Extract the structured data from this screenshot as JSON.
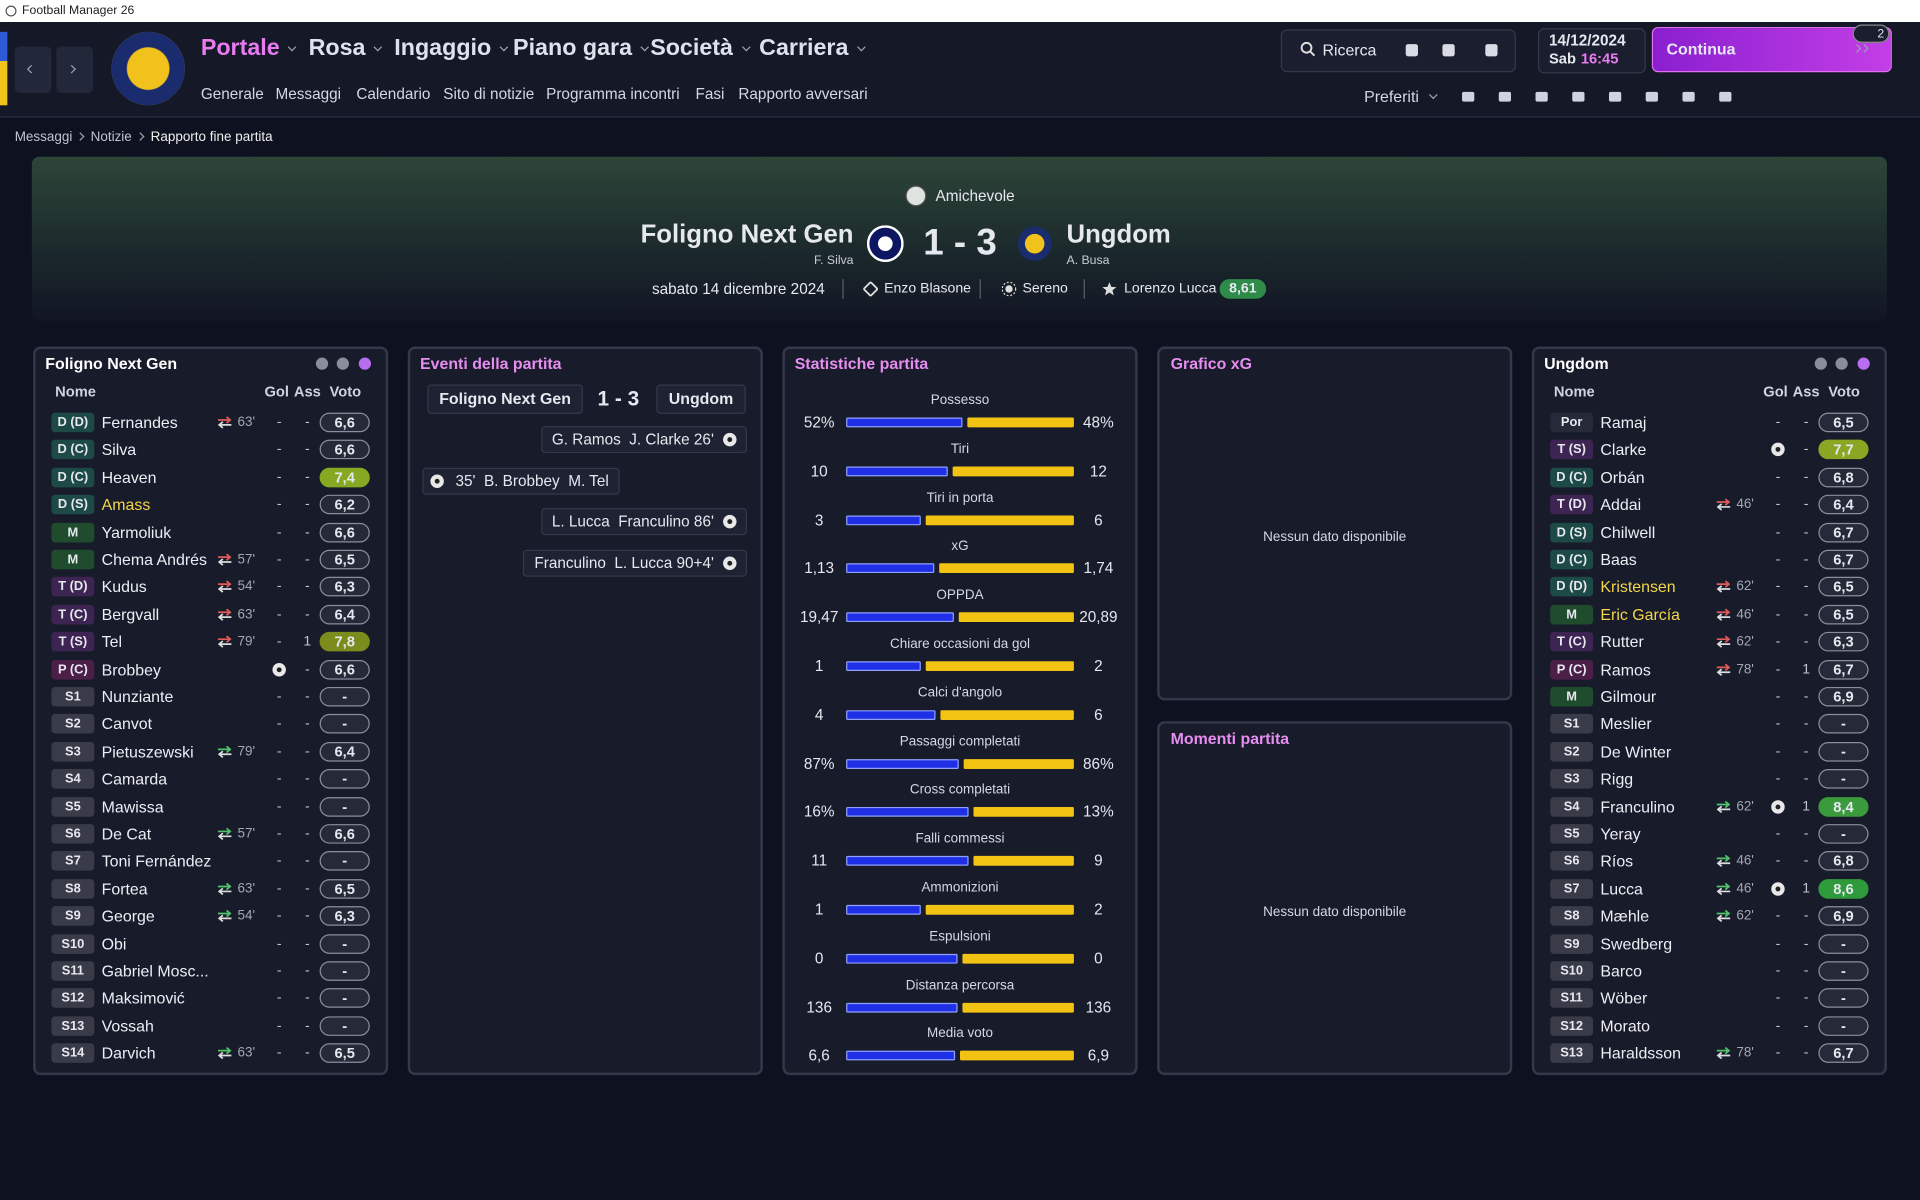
{
  "window": {
    "title": "Football Manager 26"
  },
  "nav": {
    "menus": [
      "Portale",
      "Rosa",
      "Ingaggio",
      "Piano gara",
      "Società",
      "Carriera"
    ],
    "submenus": [
      "Generale",
      "Messaggi",
      "Calendario",
      "Sito di notizie",
      "Programma incontri",
      "Fasi",
      "Rapporto avversari"
    ],
    "search": "Ricerca",
    "date": "14/12/2024",
    "day": "Sab",
    "time": "16:45",
    "continue": "Continua",
    "badge": "2",
    "favorites": "Preferiti"
  },
  "breadcrumb": [
    "Messaggi",
    "Notizie",
    "Rapporto fine partita"
  ],
  "match": {
    "competition": "Amichevole",
    "home": "Foligno Next Gen",
    "home_manager": "F. Silva",
    "score": "1 - 3",
    "away": "Ungdom",
    "away_manager": "A. Busa",
    "date": "sabato 14 dicembre 2024",
    "referee": "Enzo Blasone",
    "weather": "Sereno",
    "player_of_match": "Lorenzo Lucca",
    "pom_rating": "8,61"
  },
  "lineups": [
    {
      "team": "Foligno Next Gen",
      "columns": [
        "Nome",
        "Gol",
        "Ass",
        "Voto"
      ],
      "players": [
        {
          "pos": "D (D)",
          "name": "Fernandes",
          "off": "63'",
          "gol": "-",
          "ass": "-",
          "voto": "6,6"
        },
        {
          "pos": "D (C)",
          "name": "Silva",
          "gol": "-",
          "ass": "-",
          "voto": "6,6"
        },
        {
          "pos": "D (C)",
          "name": "Heaven",
          "gol": "-",
          "ass": "-",
          "voto": "7,4",
          "voto_color": "#86a823"
        },
        {
          "pos": "D (S)",
          "name": "Amass",
          "name_color": "#f2d64b",
          "gol": "-",
          "ass": "-",
          "voto": "6,2"
        },
        {
          "pos": "M",
          "name": "Yarmoliuk",
          "gol": "-",
          "ass": "-",
          "voto": "6,6"
        },
        {
          "pos": "M",
          "name": "Chema Andrés",
          "off": "57'",
          "gol": "-",
          "ass": "-",
          "voto": "6,5"
        },
        {
          "pos": "T (D)",
          "name": "Kudus",
          "off": "54'",
          "gol": "-",
          "ass": "-",
          "voto": "6,3"
        },
        {
          "pos": "T (C)",
          "name": "Bergvall",
          "off": "63'",
          "gol": "-",
          "ass": "-",
          "voto": "6,4"
        },
        {
          "pos": "T (S)",
          "name": "Tel",
          "off": "79'",
          "gol": "-",
          "ass": "1",
          "voto": "7,8",
          "voto_color": "#7b8c1c"
        },
        {
          "pos": "P (C)",
          "name": "Brobbey",
          "goal_icon": true,
          "ass": "-",
          "voto": "6,6"
        },
        {
          "pos": "S1",
          "name": "Nunziante",
          "gol": "-",
          "ass": "-",
          "voto": "-"
        },
        {
          "pos": "S2",
          "name": "Canvot",
          "gol": "-",
          "ass": "-",
          "voto": "-"
        },
        {
          "pos": "S3",
          "name": "Pietuszewski",
          "on": "79'",
          "gol": "-",
          "ass": "-",
          "voto": "6,4"
        },
        {
          "pos": "S4",
          "name": "Camarda",
          "gol": "-",
          "ass": "-",
          "voto": "-"
        },
        {
          "pos": "S5",
          "name": "Mawissa",
          "gol": "-",
          "ass": "-",
          "voto": "-"
        },
        {
          "pos": "S6",
          "name": "De Cat",
          "on": "57'",
          "gol": "-",
          "ass": "-",
          "voto": "6,6"
        },
        {
          "pos": "S7",
          "name": "Toni Fernández",
          "gol": "-",
          "ass": "-",
          "voto": "-"
        },
        {
          "pos": "S8",
          "name": "Fortea",
          "on": "63'",
          "gol": "-",
          "ass": "-",
          "voto": "6,5"
        },
        {
          "pos": "S9",
          "name": "George",
          "on": "54'",
          "gol": "-",
          "ass": "-",
          "voto": "6,3"
        },
        {
          "pos": "S10",
          "name": "Obi",
          "gol": "-",
          "ass": "-",
          "voto": "-"
        },
        {
          "pos": "S11",
          "name": "Gabriel Mosc...",
          "gol": "-",
          "ass": "-",
          "voto": "-"
        },
        {
          "pos": "S12",
          "name": "Maksimović",
          "gol": "-",
          "ass": "-",
          "voto": "-"
        },
        {
          "pos": "S13",
          "name": "Vossah",
          "gol": "-",
          "ass": "-",
          "voto": "-"
        },
        {
          "pos": "S14",
          "name": "Darvich",
          "on": "63'",
          "gol": "-",
          "ass": "-",
          "voto": "6,5"
        }
      ]
    },
    {
      "team": "Ungdom",
      "columns": [
        "Nome",
        "Gol",
        "Ass",
        "Voto"
      ],
      "players": [
        {
          "pos": "Por",
          "name": "Ramaj",
          "gol": "-",
          "ass": "-",
          "voto": "6,5"
        },
        {
          "pos": "T (S)",
          "name": "Clarke",
          "goal_icon": true,
          "ass": "-",
          "voto": "7,7",
          "voto_color": "#8aa623"
        },
        {
          "pos": "D (C)",
          "name": "Orbán",
          "gol": "-",
          "ass": "-",
          "voto": "6,8"
        },
        {
          "pos": "T (D)",
          "name": "Addai",
          "off": "46'",
          "gol": "-",
          "ass": "-",
          "voto": "6,4"
        },
        {
          "pos": "D (S)",
          "name": "Chilwell",
          "gol": "-",
          "ass": "-",
          "voto": "6,7"
        },
        {
          "pos": "D (C)",
          "name": "Baas",
          "gol": "-",
          "ass": "-",
          "voto": "6,7"
        },
        {
          "pos": "D (D)",
          "name": "Kristensen",
          "name_color": "#f2d64b",
          "off": "62'",
          "gol": "-",
          "ass": "-",
          "voto": "6,5"
        },
        {
          "pos": "M",
          "name": "Eric García",
          "name_color": "#f2d64b",
          "off": "46'",
          "gol": "-",
          "ass": "-",
          "voto": "6,5"
        },
        {
          "pos": "T (C)",
          "name": "Rutter",
          "off": "62'",
          "gol": "-",
          "ass": "-",
          "voto": "6,3"
        },
        {
          "pos": "P (C)",
          "name": "Ramos",
          "off": "78'",
          "gol": "-",
          "ass": "1",
          "voto": "6,7"
        },
        {
          "pos": "M",
          "name": "Gilmour",
          "gol": "-",
          "ass": "-",
          "voto": "6,9"
        },
        {
          "pos": "S1",
          "name": "Meslier",
          "gol": "-",
          "ass": "-",
          "voto": "-"
        },
        {
          "pos": "S2",
          "name": "De Winter",
          "gol": "-",
          "ass": "-",
          "voto": "-"
        },
        {
          "pos": "S3",
          "name": "Rigg",
          "gol": "-",
          "ass": "-",
          "voto": "-"
        },
        {
          "pos": "S4",
          "name": "Franculino",
          "on": "62'",
          "goal_icon": true,
          "ass": "1",
          "voto": "8,4",
          "voto_color": "#3a9a3c"
        },
        {
          "pos": "S5",
          "name": "Yeray",
          "gol": "-",
          "ass": "-",
          "voto": "-"
        },
        {
          "pos": "S6",
          "name": "Ríos",
          "on": "46'",
          "gol": "-",
          "ass": "-",
          "voto": "6,8"
        },
        {
          "pos": "S7",
          "name": "Lucca",
          "on": "46'",
          "goal_icon": true,
          "ass": "1",
          "voto": "8,6",
          "voto_color": "#2f9a3b"
        },
        {
          "pos": "S8",
          "name": "Mæhle",
          "on": "62'",
          "gol": "-",
          "ass": "-",
          "voto": "6,9"
        },
        {
          "pos": "S9",
          "name": "Swedberg",
          "gol": "-",
          "ass": "-",
          "voto": "-"
        },
        {
          "pos": "S10",
          "name": "Barco",
          "gol": "-",
          "ass": "-",
          "voto": "-"
        },
        {
          "pos": "S11",
          "name": "Wöber",
          "gol": "-",
          "ass": "-",
          "voto": "-"
        },
        {
          "pos": "S12",
          "name": "Morato",
          "gol": "-",
          "ass": "-",
          "voto": "-"
        },
        {
          "pos": "S13",
          "name": "Haraldsson",
          "on": "78'",
          "gol": "-",
          "ass": "-",
          "voto": "6,7"
        }
      ]
    }
  ],
  "events": {
    "title": "Eventi della partita",
    "items": [
      {
        "side": "away",
        "text": "G. Ramos  J. Clarke 26'"
      },
      {
        "side": "home",
        "text": "35'  B. Brobbey  M. Tel"
      },
      {
        "side": "away",
        "text": "L. Lucca  Franculino 86'"
      },
      {
        "side": "away",
        "text": "Franculino  L. Lucca 90+4'"
      }
    ]
  },
  "stats": {
    "title": "Statistiche partita",
    "home_color": "#1f2fe6",
    "away_color": "#f3c313",
    "items": [
      {
        "name": "Possesso",
        "values": [
          52,
          48
        ],
        "value_labels": [
          "52%",
          "48%"
        ]
      },
      {
        "name": "Tiri",
        "values": [
          10,
          12
        ]
      },
      {
        "name": "Tiri in porta",
        "values": [
          3,
          6
        ]
      },
      {
        "name": "xG",
        "values": [
          1.13,
          1.74
        ],
        "value_labels": [
          "1,13",
          "1,74"
        ]
      },
      {
        "name": "OPPDA",
        "values": [
          19.47,
          20.89
        ],
        "value_labels": [
          "19,47",
          "20,89"
        ]
      },
      {
        "name": "Chiare occasioni da gol",
        "values": [
          1,
          2
        ]
      },
      {
        "name": "Calci d'angolo",
        "values": [
          4,
          6
        ]
      },
      {
        "name": "Passaggi completati",
        "values": [
          87,
          86
        ],
        "value_labels": [
          "87%",
          "86%"
        ]
      },
      {
        "name": "Cross completati",
        "values": [
          16,
          13
        ],
        "value_labels": [
          "16%",
          "13%"
        ]
      },
      {
        "name": "Falli commessi",
        "values": [
          11,
          9
        ]
      },
      {
        "name": "Ammonizioni",
        "values": [
          1,
          2
        ]
      },
      {
        "name": "Espulsioni",
        "values": [
          0,
          0
        ]
      },
      {
        "name": "Distanza percorsa",
        "values": [
          136,
          136
        ]
      },
      {
        "name": "Media voto",
        "values": [
          6.6,
          6.9
        ],
        "value_labels": [
          "6,6",
          "6,9"
        ]
      }
    ]
  },
  "xg": {
    "title": "Grafico xG",
    "empty": "Nessun dato disponibile"
  },
  "moments": {
    "title": "Momenti partita",
    "empty": "Nessun dato disponibile"
  }
}
